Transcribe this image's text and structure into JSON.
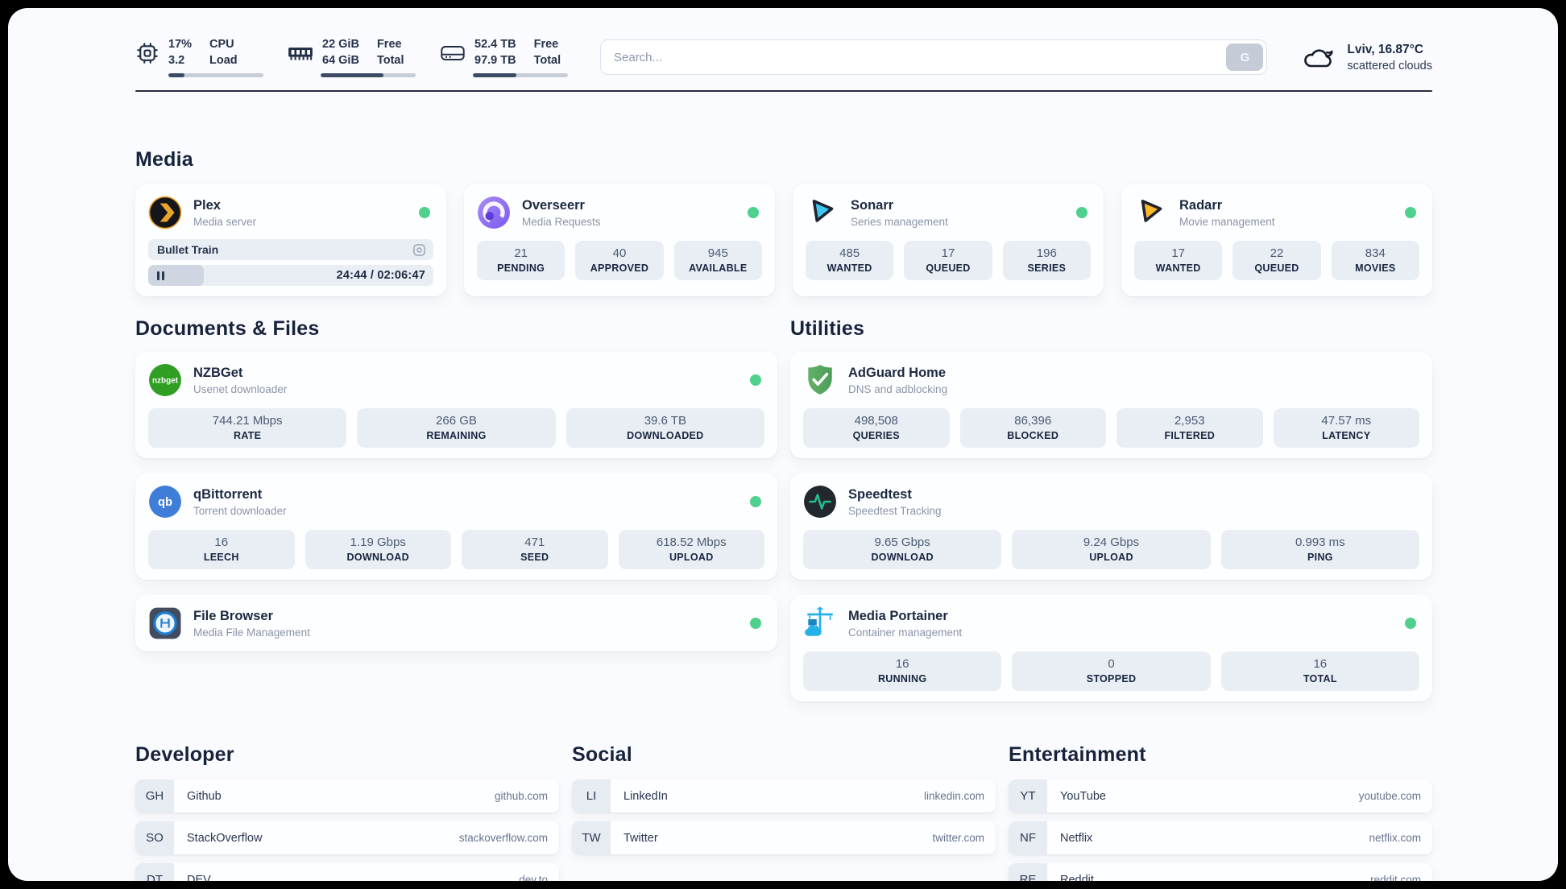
{
  "colors": {
    "accent_green": "#4fd08c",
    "bar_fill": "#3c4a63"
  },
  "header": {
    "resources": [
      {
        "name": "cpu",
        "values": [
          "17%",
          "3.2"
        ],
        "labels": [
          "CPU",
          "Load"
        ],
        "progress": 17
      },
      {
        "name": "memory",
        "values": [
          "22 GiB",
          "64 GiB"
        ],
        "labels": [
          "Free",
          "Total"
        ],
        "progress": 66
      },
      {
        "name": "disk",
        "values": [
          "52.4 TB",
          "97.9 TB"
        ],
        "labels": [
          "Free",
          "Total"
        ],
        "progress": 46
      }
    ],
    "search": {
      "placeholder": "Search...",
      "button_label": "G"
    },
    "weather": {
      "summary": "Lviv, 16.87°C",
      "condition": "scattered clouds"
    }
  },
  "sections": {
    "media": {
      "title": "Media",
      "plex": {
        "name": "Plex",
        "desc": "Media server",
        "now_playing": "Bullet Train",
        "time": "24:44 / 02:06:47",
        "progress": 19.5
      },
      "overseerr": {
        "name": "Overseerr",
        "desc": "Media Requests",
        "stats": [
          {
            "value": "21",
            "label": "PENDING"
          },
          {
            "value": "40",
            "label": "APPROVED"
          },
          {
            "value": "945",
            "label": "AVAILABLE"
          }
        ]
      },
      "sonarr": {
        "name": "Sonarr",
        "desc": "Series management",
        "stats": [
          {
            "value": "485",
            "label": "WANTED"
          },
          {
            "value": "17",
            "label": "QUEUED"
          },
          {
            "value": "196",
            "label": "SERIES"
          }
        ]
      },
      "radarr": {
        "name": "Radarr",
        "desc": "Movie management",
        "stats": [
          {
            "value": "17",
            "label": "WANTED"
          },
          {
            "value": "22",
            "label": "QUEUED"
          },
          {
            "value": "834",
            "label": "MOVIES"
          }
        ]
      }
    },
    "documents": {
      "title": "Documents & Files",
      "nzbget": {
        "name": "NZBGet",
        "desc": "Usenet downloader",
        "stats": [
          {
            "value": "744.21 Mbps",
            "label": "RATE"
          },
          {
            "value": "266 GB",
            "label": "REMAINING"
          },
          {
            "value": "39.6 TB",
            "label": "DOWNLOADED"
          }
        ]
      },
      "qbittorrent": {
        "name": "qBittorrent",
        "desc": "Torrent downloader",
        "stats": [
          {
            "value": "16",
            "label": "LEECH"
          },
          {
            "value": "1.19 Gbps",
            "label": "DOWNLOAD"
          },
          {
            "value": "471",
            "label": "SEED"
          },
          {
            "value": "618.52 Mbps",
            "label": "UPLOAD"
          }
        ]
      },
      "filebrowser": {
        "name": "File Browser",
        "desc": "Media File Management"
      }
    },
    "utilities": {
      "title": "Utilities",
      "adguard": {
        "name": "AdGuard Home",
        "desc": "DNS and adblocking",
        "stats": [
          {
            "value": "498,508",
            "label": "QUERIES"
          },
          {
            "value": "86,396",
            "label": "BLOCKED"
          },
          {
            "value": "2,953",
            "label": "FILTERED"
          },
          {
            "value": "47.57 ms",
            "label": "LATENCY"
          }
        ]
      },
      "speedtest": {
        "name": "Speedtest",
        "desc": "Speedtest Tracking",
        "stats": [
          {
            "value": "9.65 Gbps",
            "label": "DOWNLOAD"
          },
          {
            "value": "9.24 Gbps",
            "label": "UPLOAD"
          },
          {
            "value": "0.993 ms",
            "label": "PING"
          }
        ]
      },
      "portainer": {
        "name": "Media Portainer",
        "desc": "Container management",
        "stats": [
          {
            "value": "16",
            "label": "RUNNING"
          },
          {
            "value": "0",
            "label": "STOPPED"
          },
          {
            "value": "16",
            "label": "TOTAL"
          }
        ]
      }
    },
    "bookmarks": [
      {
        "title": "Developer",
        "links": [
          {
            "abbr": "GH",
            "name": "Github",
            "domain": "github.com"
          },
          {
            "abbr": "SO",
            "name": "StackOverflow",
            "domain": "stackoverflow.com"
          },
          {
            "abbr": "DT",
            "name": "DEV",
            "domain": "dev.to"
          }
        ]
      },
      {
        "title": "Social",
        "links": [
          {
            "abbr": "LI",
            "name": "LinkedIn",
            "domain": "linkedin.com"
          },
          {
            "abbr": "TW",
            "name": "Twitter",
            "domain": "twitter.com"
          }
        ]
      },
      {
        "title": "Entertainment",
        "links": [
          {
            "abbr": "YT",
            "name": "YouTube",
            "domain": "youtube.com"
          },
          {
            "abbr": "NF",
            "name": "Netflix",
            "domain": "netflix.com"
          },
          {
            "abbr": "RE",
            "name": "Reddit",
            "domain": "reddit.com"
          }
        ]
      }
    ]
  }
}
